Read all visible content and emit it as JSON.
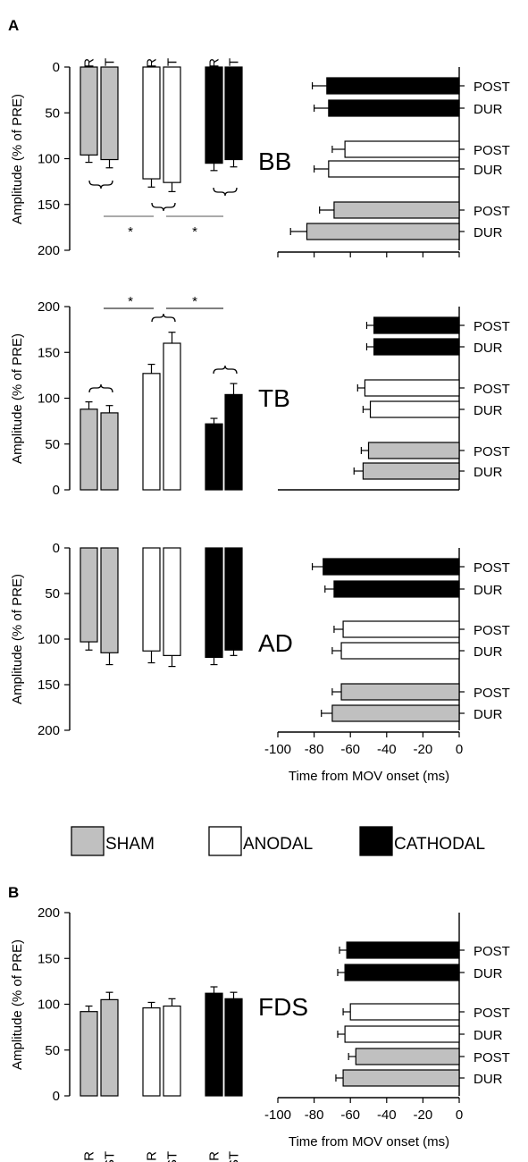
{
  "chart_data": {
    "type": "bar",
    "panel_labels": [
      "A",
      "B"
    ],
    "amplitude_ylabel": "Amplitude (% of PRE)",
    "time_xlabel": "Time from  MOV onset (ms)",
    "time_axis_ticks": [
      "-100",
      "-80",
      "-60",
      "-40",
      "-20",
      "0"
    ],
    "time_xlim": [
      -100,
      0
    ],
    "legend": [
      "SHAM",
      "ANODAL",
      "CATHODAL"
    ],
    "colors": {
      "SHAM": "#c0c0c0",
      "ANODAL": "#ffffff",
      "CATHODAL": "#000000"
    },
    "condition_labels": [
      "DUR",
      "POST"
    ],
    "significance_mark": "*",
    "panels": [
      {
        "panel": "A",
        "muscle": "BB",
        "amplitude_axis": "inverted",
        "ylim": [
          0,
          200
        ],
        "yticks": [
          "0",
          "50",
          "100",
          "150",
          "200"
        ],
        "amplitude": [
          {
            "group": "SHAM",
            "DUR": 96,
            "DUR_err": 8,
            "POST": 101,
            "POST_err": 9
          },
          {
            "group": "ANODAL",
            "DUR": 122,
            "DUR_err": 9,
            "POST": 126,
            "POST_err": 10
          },
          {
            "group": "CATHODAL",
            "DUR": 105,
            "DUR_err": 8,
            "POST": 101,
            "POST_err": 8
          }
        ],
        "onset_ms": [
          {
            "group": "CATHODAL",
            "POST": -73,
            "POST_err": 8,
            "DUR": -72,
            "DUR_err": 8
          },
          {
            "group": "ANODAL",
            "POST": -63,
            "POST_err": 7,
            "DUR": -72,
            "DUR_err": 8
          },
          {
            "group": "SHAM",
            "POST": -69,
            "POST_err": 8,
            "DUR": -84,
            "DUR_err": 9
          }
        ]
      },
      {
        "panel": "A",
        "muscle": "TB",
        "amplitude_axis": "normal",
        "ylim": [
          0,
          200
        ],
        "yticks": [
          "0",
          "50",
          "100",
          "150",
          "200"
        ],
        "amplitude": [
          {
            "group": "SHAM",
            "DUR": 88,
            "DUR_err": 8,
            "POST": 84,
            "POST_err": 8
          },
          {
            "group": "ANODAL",
            "DUR": 127,
            "DUR_err": 10,
            "POST": 160,
            "POST_err": 12
          },
          {
            "group": "CATHODAL",
            "DUR": 72,
            "DUR_err": 6,
            "POST": 104,
            "POST_err": 12
          }
        ],
        "onset_ms": [
          {
            "group": "CATHODAL",
            "POST": -47,
            "POST_err": 4,
            "DUR": -47,
            "DUR_err": 4
          },
          {
            "group": "ANODAL",
            "POST": -52,
            "POST_err": 4,
            "DUR": -49,
            "DUR_err": 4
          },
          {
            "group": "SHAM",
            "POST": -50,
            "POST_err": 4,
            "DUR": -53,
            "DUR_err": 5
          }
        ]
      },
      {
        "panel": "A",
        "muscle": "AD",
        "amplitude_axis": "inverted",
        "ylim": [
          0,
          200
        ],
        "yticks": [
          "0",
          "50",
          "100",
          "150",
          "200"
        ],
        "amplitude": [
          {
            "group": "SHAM",
            "DUR": 103,
            "DUR_err": 9,
            "POST": 115,
            "POST_err": 13
          },
          {
            "group": "ANODAL",
            "DUR": 113,
            "DUR_err": 13,
            "POST": 118,
            "POST_err": 12
          },
          {
            "group": "CATHODAL",
            "DUR": 120,
            "DUR_err": 8,
            "POST": 112,
            "POST_err": 6
          }
        ],
        "onset_ms": [
          {
            "group": "CATHODAL",
            "POST": -75,
            "POST_err": 6,
            "DUR": -69,
            "DUR_err": 5
          },
          {
            "group": "ANODAL",
            "POST": -64,
            "POST_err": 5,
            "DUR": -65,
            "DUR_err": 5
          },
          {
            "group": "SHAM",
            "POST": -65,
            "POST_err": 5,
            "DUR": -70,
            "DUR_err": 6
          }
        ]
      },
      {
        "panel": "B",
        "muscle": "FDS",
        "amplitude_axis": "normal",
        "ylim": [
          0,
          200
        ],
        "yticks": [
          "0",
          "50",
          "100",
          "150",
          "200"
        ],
        "amplitude": [
          {
            "group": "SHAM",
            "DUR": 92,
            "DUR_err": 6,
            "POST": 105,
            "POST_err": 8
          },
          {
            "group": "ANODAL",
            "DUR": 96,
            "DUR_err": 6,
            "POST": 98,
            "POST_err": 8
          },
          {
            "group": "CATHODAL",
            "DUR": 112,
            "DUR_err": 7,
            "POST": 106,
            "POST_err": 7
          }
        ],
        "onset_ms": [
          {
            "group": "CATHODAL",
            "POST": -62,
            "POST_err": 4,
            "DUR": -63,
            "DUR_err": 4
          },
          {
            "group": "ANODAL",
            "POST": -60,
            "POST_err": 4,
            "DUR": -63,
            "DUR_err": 4
          },
          {
            "group": "SHAM",
            "POST": -57,
            "POST_err": 4,
            "DUR": -64,
            "DUR_err": 4
          }
        ]
      }
    ]
  }
}
